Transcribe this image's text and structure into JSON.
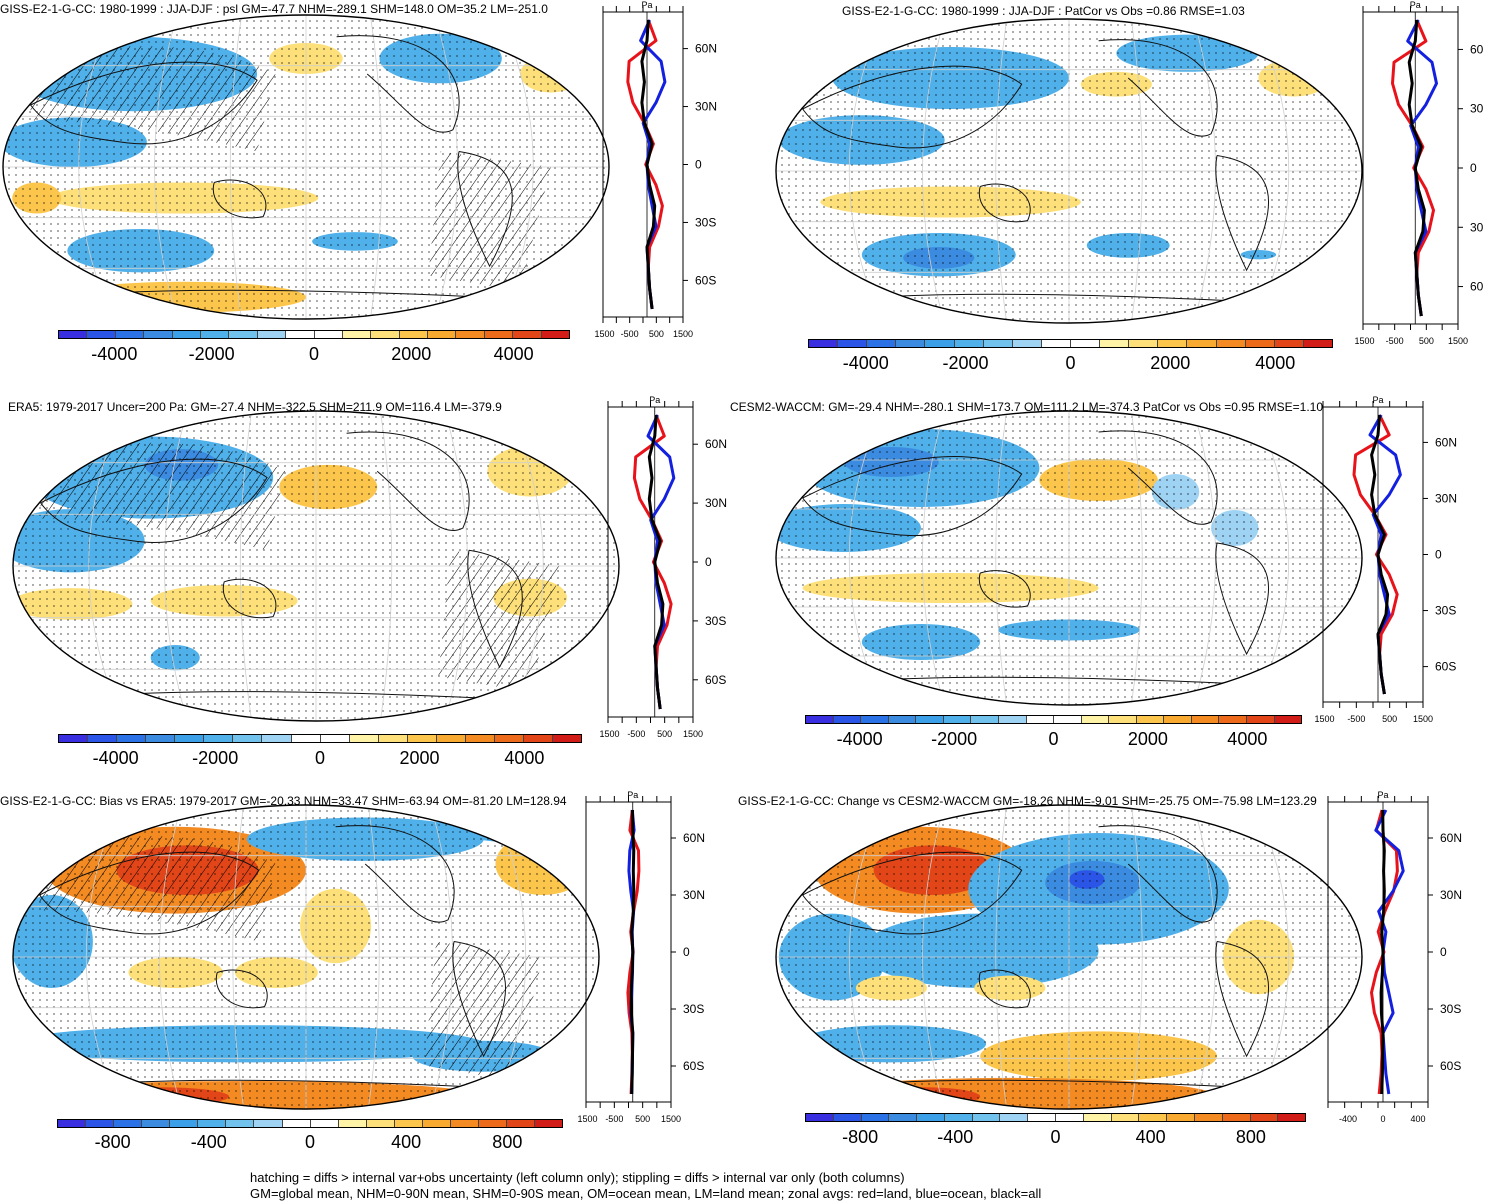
{
  "colors": {
    "scale": [
      "#3a2fe0",
      "#2a55e6",
      "#2b72e6",
      "#3b8be0",
      "#3ba0e8",
      "#4fb0ea",
      "#72c2ee",
      "#9fd3f3",
      "#ffffff",
      "#ffffff",
      "#fff3a8",
      "#fde07a",
      "#fcc64c",
      "#f8a930",
      "#f38a22",
      "#ec6a1a",
      "#e24618",
      "#d21c17"
    ],
    "land_red": "#e8131a",
    "ocean_blue": "#1320e0",
    "all_black": "#000000"
  },
  "panels": [
    {
      "id": "p1",
      "title": "GISS-E2-1-G-CC: 1980-1999 : JJA-DJF : psl GM=-47.7 NHM=-289.1 SHM=148.0 OM=35.2 LM=-251.0",
      "colorbar_labels": [
        "-4000",
        "-2000",
        "0",
        "2000",
        "4000"
      ],
      "lat_labels": [
        "60N",
        "30N",
        "0",
        "30S",
        "60S"
      ],
      "x_ticks": [
        "-1500",
        "-500",
        "500",
        "1500"
      ],
      "unit": "Pa"
    },
    {
      "id": "p2",
      "title": "GISS-E2-1-G-CC: 1980-1999 : JJA-DJF : PatCor vs Obs =0.86 RMSE=1.03",
      "colorbar_labels": [
        "-4000",
        "-2000",
        "0",
        "2000",
        "4000"
      ],
      "lat_labels": [
        "60",
        "30",
        "0",
        "30",
        "60"
      ],
      "x_ticks": [
        "-1500",
        "-500",
        "500",
        "1500"
      ],
      "unit": "Pa"
    },
    {
      "id": "p3",
      "title": "ERA5: 1979-2017 Uncer=200 Pa: GM=-27.4 NHM=-322.5 SHM=211.9 OM=116.4 LM=-379.9",
      "colorbar_labels": [
        "-4000",
        "-2000",
        "0",
        "2000",
        "4000"
      ],
      "lat_labels": [
        "60N",
        "30N",
        "0",
        "30S",
        "60S"
      ],
      "x_ticks": [
        "-1500",
        "-500",
        "500",
        "1500"
      ],
      "unit": "Pa"
    },
    {
      "id": "p4",
      "title": "CESM2-WACCM: GM=-29.4 NHM=-280.1 SHM=173.7 OM=111.2 LM=-374.3 PatCor vs Obs =0.95 RMSE=1.10",
      "colorbar_labels": [
        "-4000",
        "-2000",
        "0",
        "2000",
        "4000"
      ],
      "lat_labels": [
        "60N",
        "30N",
        "0",
        "30S",
        "60S"
      ],
      "x_ticks": [
        "-1500",
        "-500",
        "500",
        "1500"
      ],
      "unit": "Pa"
    },
    {
      "id": "p5",
      "title": "GISS-E2-1-G-CC: Bias vs ERA5: 1979-2017 GM=-20.33 NHM=33.47 SHM=-63.94 OM=-81.20 LM=128.94",
      "colorbar_labels": [
        "-800",
        "-400",
        "0",
        "400",
        "800"
      ],
      "lat_labels": [
        "60N",
        "30N",
        "0",
        "30S",
        "60S"
      ],
      "x_ticks": [
        "-1500",
        "-500",
        "500",
        "1500"
      ],
      "unit": "Pa"
    },
    {
      "id": "p6",
      "title": "GISS-E2-1-G-CC: Change vs CESM2-WACCM GM=-18.26 NHM=-9.01 SHM=-25.75 OM=-75.98 LM=123.29",
      "colorbar_labels": [
        "-800",
        "-400",
        "0",
        "400",
        "800"
      ],
      "lat_labels": [
        "60N",
        "30N",
        "0",
        "30S",
        "60S"
      ],
      "x_ticks": [
        "-400",
        "0",
        "400"
      ],
      "unit": "Pa"
    }
  ],
  "footer": {
    "line1": "hatching = diffs > internal var+obs uncertainty (left column only); stippling = diffs > internal var only (both columns)",
    "line2": "GM=global mean, NHM=0-90N mean, SHM=0-90S mean, OM=ocean mean, LM=land mean; zonal avgs: red=land, blue=ocean, black=all"
  }
}
